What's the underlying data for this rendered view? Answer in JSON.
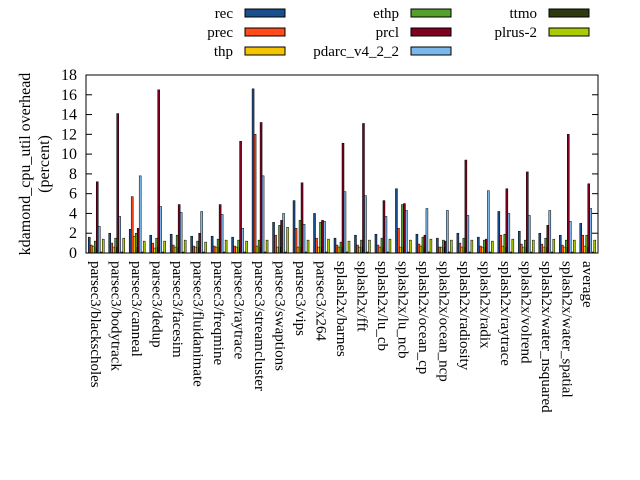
{
  "chart_data": {
    "type": "bar",
    "ylabel_lines": [
      "kdamond_cpu_util overhead",
      "(percent)"
    ],
    "ylim": [
      0,
      18
    ],
    "yticks": [
      0,
      2,
      4,
      6,
      8,
      10,
      12,
      14,
      16,
      18
    ],
    "legend_position": "top",
    "categories": [
      "parsec3/blackscholes",
      "parsec3/bodytrack",
      "parsec3/canneal",
      "parsec3/dedup",
      "parsec3/facesim",
      "parsec3/fluidanimate",
      "parsec3/freqmine",
      "parsec3/raytrace",
      "parsec3/streamcluster",
      "parsec3/swaptions",
      "parsec3/vips",
      "parsec3/x264",
      "splash2x/barnes",
      "splash2x/fft",
      "splash2x/lu_cb",
      "splash2x/lu_ncb",
      "splash2x/ocean_cp",
      "splash2x/ocean_ncp",
      "splash2x/radiosity",
      "splash2x/radix",
      "splash2x/raytrace",
      "splash2x/volrend",
      "splash2x/water_nsquared",
      "splash2x/water_spatial",
      "average"
    ],
    "series": [
      {
        "name": "rec",
        "color": "#1a4e8c",
        "values": [
          1.6,
          2.0,
          2.4,
          1.8,
          1.9,
          1.7,
          1.7,
          1.6,
          16.6,
          3.1,
          5.3,
          4.0,
          1.5,
          1.8,
          1.9,
          6.5,
          1.9,
          1.5,
          2.0,
          1.6,
          4.2,
          2.2,
          2.0,
          1.8,
          3.0
        ]
      },
      {
        "name": "prec",
        "color": "#ff4a1a",
        "values": [
          0.8,
          1.0,
          5.7,
          1.0,
          0.8,
          0.7,
          0.7,
          0.7,
          12.0,
          1.8,
          2.5,
          1.5,
          0.8,
          0.8,
          0.8,
          2.5,
          0.9,
          0.6,
          1.0,
          0.7,
          1.8,
          0.9,
          0.9,
          0.8,
          1.8
        ]
      },
      {
        "name": "thp",
        "color": "#f5c400",
        "values": [
          0.7,
          0.6,
          1.7,
          0.5,
          0.6,
          0.6,
          0.6,
          0.6,
          0.7,
          0.6,
          0.6,
          0.6,
          0.6,
          0.6,
          0.6,
          0.6,
          0.7,
          0.6,
          0.6,
          0.6,
          0.7,
          0.6,
          0.6,
          0.6,
          0.7
        ]
      },
      {
        "name": "ethp",
        "color": "#55a02a",
        "values": [
          1.2,
          1.5,
          2.0,
          1.5,
          1.8,
          1.2,
          1.4,
          1.3,
          1.3,
          2.8,
          3.3,
          3.1,
          1.1,
          1.3,
          1.5,
          4.9,
          1.6,
          1.3,
          1.5,
          1.3,
          1.9,
          1.3,
          1.5,
          1.3,
          1.8
        ]
      },
      {
        "name": "prcl",
        "color": "#800020",
        "values": [
          7.2,
          14.1,
          2.5,
          16.5,
          4.9,
          2.0,
          4.9,
          11.3,
          13.2,
          3.3,
          7.1,
          3.3,
          11.1,
          13.1,
          5.3,
          5.0,
          1.8,
          1.2,
          9.4,
          1.4,
          6.5,
          8.2,
          2.8,
          12.0,
          7.0
        ]
      },
      {
        "name": "pdarc_v4_2_2",
        "color": "#7ab8ec",
        "values": [
          2.7,
          3.7,
          7.8,
          4.7,
          4.1,
          4.2,
          3.9,
          2.5,
          7.8,
          4.0,
          2.9,
          3.2,
          6.2,
          5.8,
          3.7,
          4.3,
          4.5,
          4.3,
          3.8,
          6.3,
          4.0,
          3.8,
          4.3,
          3.2,
          4.5
        ]
      },
      {
        "name": "ttmo",
        "color": "#2e3a10",
        "values": [
          0.1,
          0.1,
          0.1,
          0.1,
          0.1,
          0.1,
          0.1,
          0.1,
          0.1,
          0.1,
          0.1,
          0.1,
          0.1,
          0.1,
          0.1,
          0.1,
          0.1,
          0.1,
          0.1,
          0.1,
          0.1,
          0.1,
          0.1,
          0.1,
          0.1
        ]
      },
      {
        "name": "plrus-2",
        "color": "#aacc00",
        "values": [
          1.4,
          1.5,
          1.2,
          1.2,
          1.3,
          1.1,
          1.3,
          1.2,
          1.3,
          2.6,
          1.3,
          1.4,
          1.2,
          1.3,
          1.4,
          1.3,
          1.4,
          1.3,
          1.3,
          1.2,
          1.4,
          1.3,
          1.4,
          1.3,
          1.3
        ]
      }
    ]
  }
}
